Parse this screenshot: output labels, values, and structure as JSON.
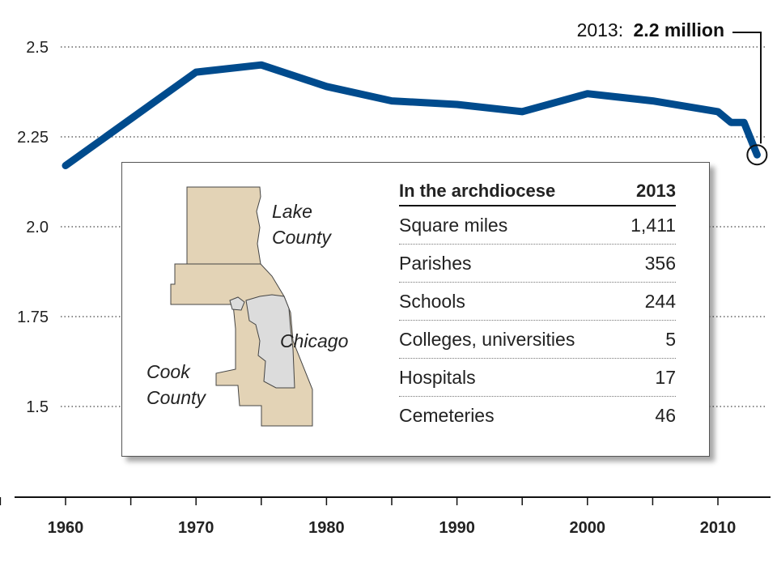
{
  "chart_data": {
    "type": "line",
    "title": "",
    "xlabel": "",
    "ylabel": "",
    "x_ticks": [
      "1960",
      "1970",
      "1980",
      "1990",
      "2000",
      "2010"
    ],
    "y_ticks": [
      "2.5",
      "2.25",
      "2.0",
      "1.75",
      "1.5"
    ],
    "xlim": [
      1960,
      2013
    ],
    "ylim": [
      1.5,
      2.5
    ],
    "grid": true,
    "series": [
      {
        "color": "#004b8d",
        "x": [
          1960,
          1965,
          1970,
          1975,
          1980,
          1985,
          1990,
          1995,
          2000,
          2005,
          2010,
          2011,
          2012,
          2013
        ],
        "values": [
          2.17,
          2.3,
          2.43,
          2.45,
          2.39,
          2.35,
          2.34,
          2.32,
          2.37,
          2.35,
          2.32,
          2.29,
          2.29,
          2.2
        ]
      }
    ],
    "annotation": {
      "x": 2013,
      "y": 2.2,
      "prefix": "2013:",
      "value": "2.2 million"
    }
  },
  "inset": {
    "map_labels": {
      "lake_line1": "Lake",
      "lake_line2": "County",
      "chicago": "Chicago",
      "cook_line1": "Cook",
      "cook_line2": "County"
    },
    "colors": {
      "county_fill": "#e3d3b6",
      "city_fill": "#dcdcdc",
      "outline": "#444444"
    },
    "table": {
      "heading": "In the archdiocese",
      "year": "2013",
      "rows": [
        {
          "label": "Square miles",
          "value": "1,411"
        },
        {
          "label": "Parishes",
          "value": "356"
        },
        {
          "label": "Schools",
          "value": "244"
        },
        {
          "label": "Colleges, universities",
          "value": "5"
        },
        {
          "label": "Hospitals",
          "value": "17"
        },
        {
          "label": "Cemeteries",
          "value": "46"
        }
      ]
    }
  }
}
